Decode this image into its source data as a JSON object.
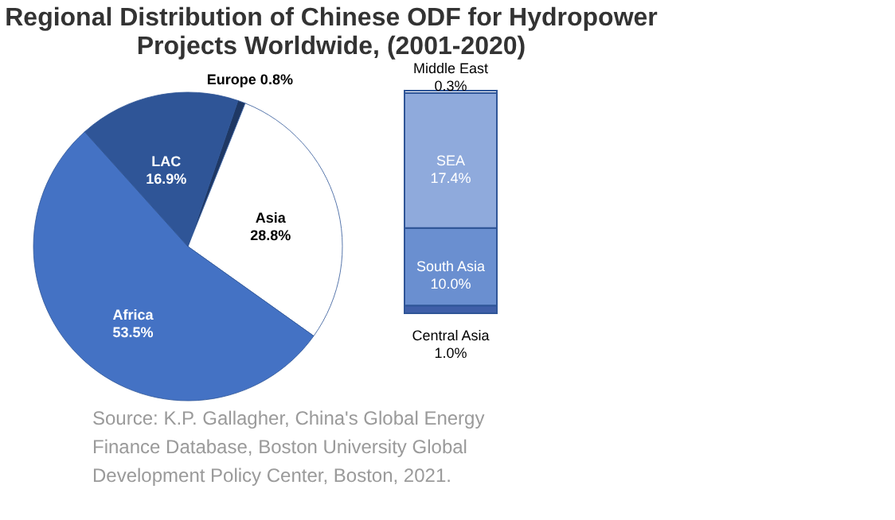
{
  "chart_data": [
    {
      "type": "pie",
      "title": "Regional Distribution of Chinese ODF for Hydropower Projects Worldwide, (2001-2020)",
      "categories": [
        "Europe",
        "Asia",
        "Africa",
        "LAC"
      ],
      "values": [
        0.8,
        28.8,
        53.5,
        16.9
      ],
      "colors": [
        "#1f3864",
        "#ffffff",
        "#4472c4",
        "#2f5597"
      ],
      "value_labels": [
        "0.8%",
        "28.8%",
        "53.5%",
        "16.9%"
      ],
      "annotations": [
        "Source: K.P. Gallagher, China's Global Energy Finance Database, Boston University Global Development Policy Center, Boston, 2021."
      ]
    },
    {
      "type": "bar",
      "stacked": true,
      "categories": [
        null
      ],
      "series": [
        {
          "name": "Central Asia",
          "color": "#3f5fa8",
          "values": [
            1.0
          ],
          "value_labels": [
            "1.0%"
          ]
        },
        {
          "name": "South Asia",
          "color": "#6a8fd0",
          "values": [
            10.0
          ],
          "value_labels": [
            "10.0%"
          ]
        },
        {
          "name": "SEA",
          "color": "#8faadc",
          "values": [
            17.4
          ],
          "value_labels": [
            "17.4%"
          ]
        },
        {
          "name": "Middle East",
          "color": "#ffffff",
          "values": [
            0.3
          ],
          "value_labels": [
            "0.3%"
          ]
        }
      ]
    }
  ]
}
